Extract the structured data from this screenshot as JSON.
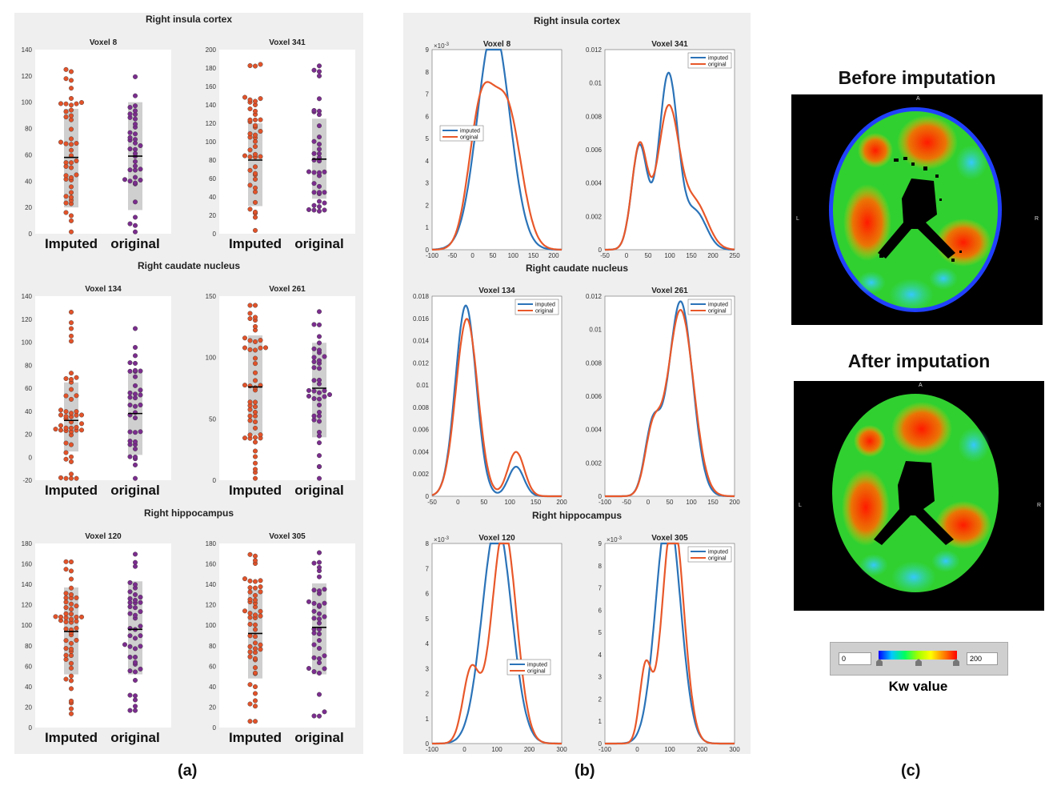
{
  "captions": {
    "a": "(a)",
    "b": "(b)",
    "c": "(c)"
  },
  "colors": {
    "imputed": "#e2532a",
    "original": "#7b2d8e",
    "kde_imputed": "#2b73b8",
    "kde_original": "#e8582a",
    "panel_bg": "#efefef",
    "box": "#cfcfcf"
  },
  "sections": [
    "Right insula cortex",
    "Right caudate nucleus",
    "Right hippocampus"
  ],
  "chart_data": [
    {
      "type": "scatter",
      "kind": "swarm",
      "section": "Right insula cortex",
      "title": "Voxel 8",
      "categories": [
        "Imputed",
        "original"
      ],
      "ylim": [
        0,
        140
      ],
      "yticks": [
        0,
        20,
        40,
        60,
        80,
        100,
        120,
        140
      ],
      "mean": [
        58,
        59
      ],
      "box_imputed": [
        20,
        95
      ],
      "box_original": [
        18,
        100
      ],
      "n": [
        45,
        38
      ]
    },
    {
      "type": "scatter",
      "kind": "swarm",
      "section": "Right insula cortex",
      "title": "Voxel 341",
      "categories": [
        "Imputed",
        "original"
      ],
      "ylim": [
        0,
        200
      ],
      "yticks": [
        0,
        20,
        40,
        60,
        80,
        100,
        120,
        140,
        160,
        180,
        200
      ],
      "mean": [
        80,
        81
      ],
      "box_imputed": [
        30,
        120
      ],
      "box_original": [
        38,
        125
      ],
      "n": [
        45,
        38
      ]
    },
    {
      "type": "scatter",
      "kind": "swarm",
      "section": "Right caudate nucleus",
      "title": "Voxel 134",
      "categories": [
        "Imputed",
        "original"
      ],
      "ylim": [
        -20,
        140
      ],
      "yticks": [
        -20,
        0,
        20,
        40,
        60,
        80,
        100,
        120,
        140
      ],
      "mean": [
        32,
        38
      ],
      "box_imputed": [
        5,
        65
      ],
      "box_original": [
        2,
        74
      ],
      "n": [
        48,
        36
      ]
    },
    {
      "type": "scatter",
      "kind": "swarm",
      "section": "Right caudate nucleus",
      "title": "Voxel 261",
      "categories": [
        "Imputed",
        "original"
      ],
      "ylim": [
        0,
        150
      ],
      "yticks": [
        0,
        50,
        100,
        150
      ],
      "mean": [
        76,
        75
      ],
      "box_imputed": [
        37,
        118
      ],
      "box_original": [
        35,
        112
      ],
      "n": [
        50,
        40
      ]
    },
    {
      "type": "scatter",
      "kind": "swarm",
      "section": "Right hippocampus",
      "title": "Voxel 120",
      "categories": [
        "Imputed",
        "original"
      ],
      "ylim": [
        0,
        180
      ],
      "yticks": [
        0,
        20,
        40,
        60,
        80,
        100,
        120,
        140,
        160,
        180
      ],
      "mean": [
        94,
        96
      ],
      "box_imputed": [
        52,
        137
      ],
      "box_original": [
        52,
        143
      ],
      "n": [
        52,
        44
      ]
    },
    {
      "type": "scatter",
      "kind": "swarm",
      "section": "Right hippocampus",
      "title": "Voxel 305",
      "categories": [
        "Imputed",
        "original"
      ],
      "ylim": [
        0,
        180
      ],
      "yticks": [
        0,
        20,
        40,
        60,
        80,
        100,
        120,
        140,
        160,
        180
      ],
      "mean": [
        92,
        98
      ],
      "box_imputed": [
        48,
        135
      ],
      "box_original": [
        52,
        141
      ],
      "n": [
        52,
        40
      ]
    },
    {
      "type": "line",
      "kind": "density",
      "section": "Right insula cortex",
      "title": "Voxel 8",
      "xlim": [
        -100,
        220
      ],
      "xticks": [
        -100,
        -50,
        0,
        50,
        100,
        150,
        200
      ],
      "ylim": [
        0,
        0.009
      ],
      "yticks": [
        0,
        1,
        2,
        3,
        4,
        5,
        6,
        7,
        8,
        9
      ],
      "ytick_scale": "x 10^-3",
      "legend": [
        "imputed",
        "original"
      ],
      "legend_position": "middle-left",
      "series": [
        {
          "name": "imputed",
          "comps": [
            [
              52,
              40,
              1.0
            ]
          ]
        },
        {
          "name": "original",
          "comps": [
            [
              20,
              30,
              0.45
            ],
            [
              85,
              35,
              0.55
            ]
          ]
        }
      ]
    },
    {
      "type": "line",
      "kind": "density",
      "section": "Right insula cortex",
      "title": "Voxel 341",
      "xlim": [
        -50,
        250
      ],
      "xticks": [
        -50,
        0,
        50,
        100,
        150,
        200,
        250
      ],
      "ylim": [
        0,
        0.012
      ],
      "yticks": [
        0,
        0.002,
        0.004,
        0.006,
        0.008,
        0.01,
        0.012
      ],
      "legend": [
        "imputed",
        "original"
      ],
      "legend_position": "top-right",
      "series": [
        {
          "name": "imputed",
          "comps": [
            [
              30,
              18,
              0.28
            ],
            [
              97,
              22,
              0.58
            ],
            [
              160,
              25,
              0.14
            ]
          ]
        },
        {
          "name": "original",
          "comps": [
            [
              30,
              18,
              0.28
            ],
            [
              97,
              25,
              0.53
            ],
            [
              160,
              28,
              0.19
            ]
          ]
        }
      ]
    },
    {
      "type": "line",
      "kind": "density",
      "section": "Right caudate nucleus",
      "title": "Voxel 134",
      "xlim": [
        -50,
        200
      ],
      "xticks": [
        -50,
        0,
        50,
        100,
        150,
        200
      ],
      "ylim": [
        0,
        0.018
      ],
      "yticks": [
        0,
        0.002,
        0.004,
        0.006,
        0.008,
        0.01,
        0.012,
        0.014,
        0.016,
        0.018
      ],
      "legend": [
        "imputed",
        "original"
      ],
      "legend_position": "top-right",
      "series": [
        {
          "name": "imputed",
          "comps": [
            [
              15,
              20,
              0.86
            ],
            [
              112,
              15,
              0.1
            ]
          ]
        },
        {
          "name": "original",
          "comps": [
            [
              17,
              21,
              0.84
            ],
            [
              112,
              16,
              0.16
            ]
          ]
        }
      ]
    },
    {
      "type": "line",
      "kind": "density",
      "section": "Right caudate nucleus",
      "title": "Voxel 261",
      "xlim": [
        -100,
        200
      ],
      "xticks": [
        -100,
        -50,
        0,
        50,
        100,
        150,
        200
      ],
      "ylim": [
        0,
        0.012
      ],
      "yticks": [
        0,
        0.002,
        0.004,
        0.006,
        0.008,
        0.01,
        0.012
      ],
      "legend": [
        "imputed",
        "original"
      ],
      "legend_position": "top-right",
      "series": [
        {
          "name": "imputed",
          "comps": [
            [
              10,
              18,
              0.18
            ],
            [
              75,
              28,
              0.82
            ]
          ]
        },
        {
          "name": "original",
          "comps": [
            [
              10,
              18,
              0.16
            ],
            [
              75,
              30,
              0.84
            ]
          ]
        }
      ]
    },
    {
      "type": "line",
      "kind": "density",
      "section": "Right hippocampus",
      "title": "Voxel 120",
      "xlim": [
        -100,
        300
      ],
      "xticks": [
        -100,
        0,
        100,
        200,
        300
      ],
      "ylim": [
        0,
        0.008
      ],
      "yticks": [
        0,
        1,
        2,
        3,
        4,
        5,
        6,
        7,
        8
      ],
      "ytick_scale": "x 10^-3",
      "legend": [
        "imputed",
        "original"
      ],
      "legend_position": "lower-right",
      "series": [
        {
          "name": "imputed",
          "comps": [
            [
              100,
              45,
              1.0
            ]
          ]
        },
        {
          "name": "original",
          "comps": [
            [
              20,
              25,
              0.18
            ],
            [
              122,
              38,
              0.82
            ]
          ]
        }
      ]
    },
    {
      "type": "line",
      "kind": "density",
      "section": "Right hippocampus",
      "title": "Voxel 305",
      "xlim": [
        -100,
        300
      ],
      "xticks": [
        -100,
        0,
        100,
        200,
        300
      ],
      "ylim": [
        0,
        0.009
      ],
      "yticks": [
        0,
        1,
        2,
        3,
        4,
        5,
        6,
        7,
        8,
        9
      ],
      "ytick_scale": "x 10^-3",
      "legend": [
        "imputed",
        "original"
      ],
      "legend_position": "top-right",
      "series": [
        {
          "name": "imputed",
          "comps": [
            [
              95,
              38,
              1.0
            ]
          ]
        },
        {
          "name": "original",
          "comps": [
            [
              25,
              18,
              0.15
            ],
            [
              110,
              33,
              0.85
            ]
          ]
        }
      ]
    }
  ],
  "brains": {
    "before_title": "Before imputation",
    "after_title": "After imputation",
    "orientation": {
      "top": "A",
      "left": "L",
      "right": "R"
    }
  },
  "colorbar": {
    "min": "0",
    "max": "200",
    "label": "Kw value"
  }
}
